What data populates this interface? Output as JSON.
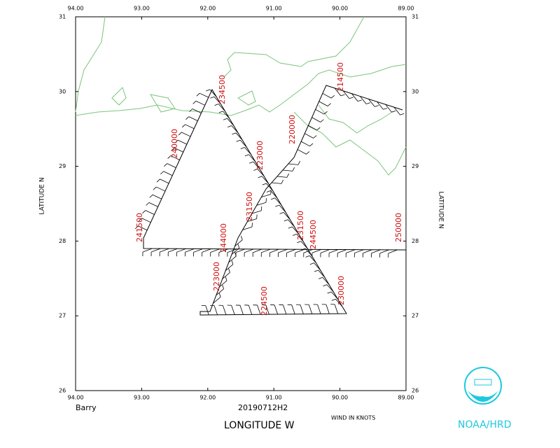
{
  "header": {
    "storm": "Barry",
    "flight": "20190712H2",
    "x_title": "LONGITUDE  W",
    "wind_note": "WIND IN KNOTS",
    "y_title": "LATITUDE  N",
    "logo_text": "NOAA/HRD"
  },
  "map": {
    "lon_ticks": [
      {
        "value": -94,
        "label": "94.00"
      },
      {
        "value": -93,
        "label": "93.00"
      },
      {
        "value": -92,
        "label": "92.00"
      },
      {
        "value": -91,
        "label": "91.00"
      },
      {
        "value": -90,
        "label": "90.00"
      },
      {
        "value": -89,
        "label": "89.00"
      }
    ],
    "lat_ticks": [
      31,
      30,
      29,
      28,
      27,
      26
    ],
    "track_labels": [
      "214500",
      "220000",
      "223000",
      "231500",
      "234500",
      "240000",
      "241500",
      "244000",
      "231500",
      "244500",
      "250000",
      "223000",
      "224500",
      "230000"
    ]
  }
}
